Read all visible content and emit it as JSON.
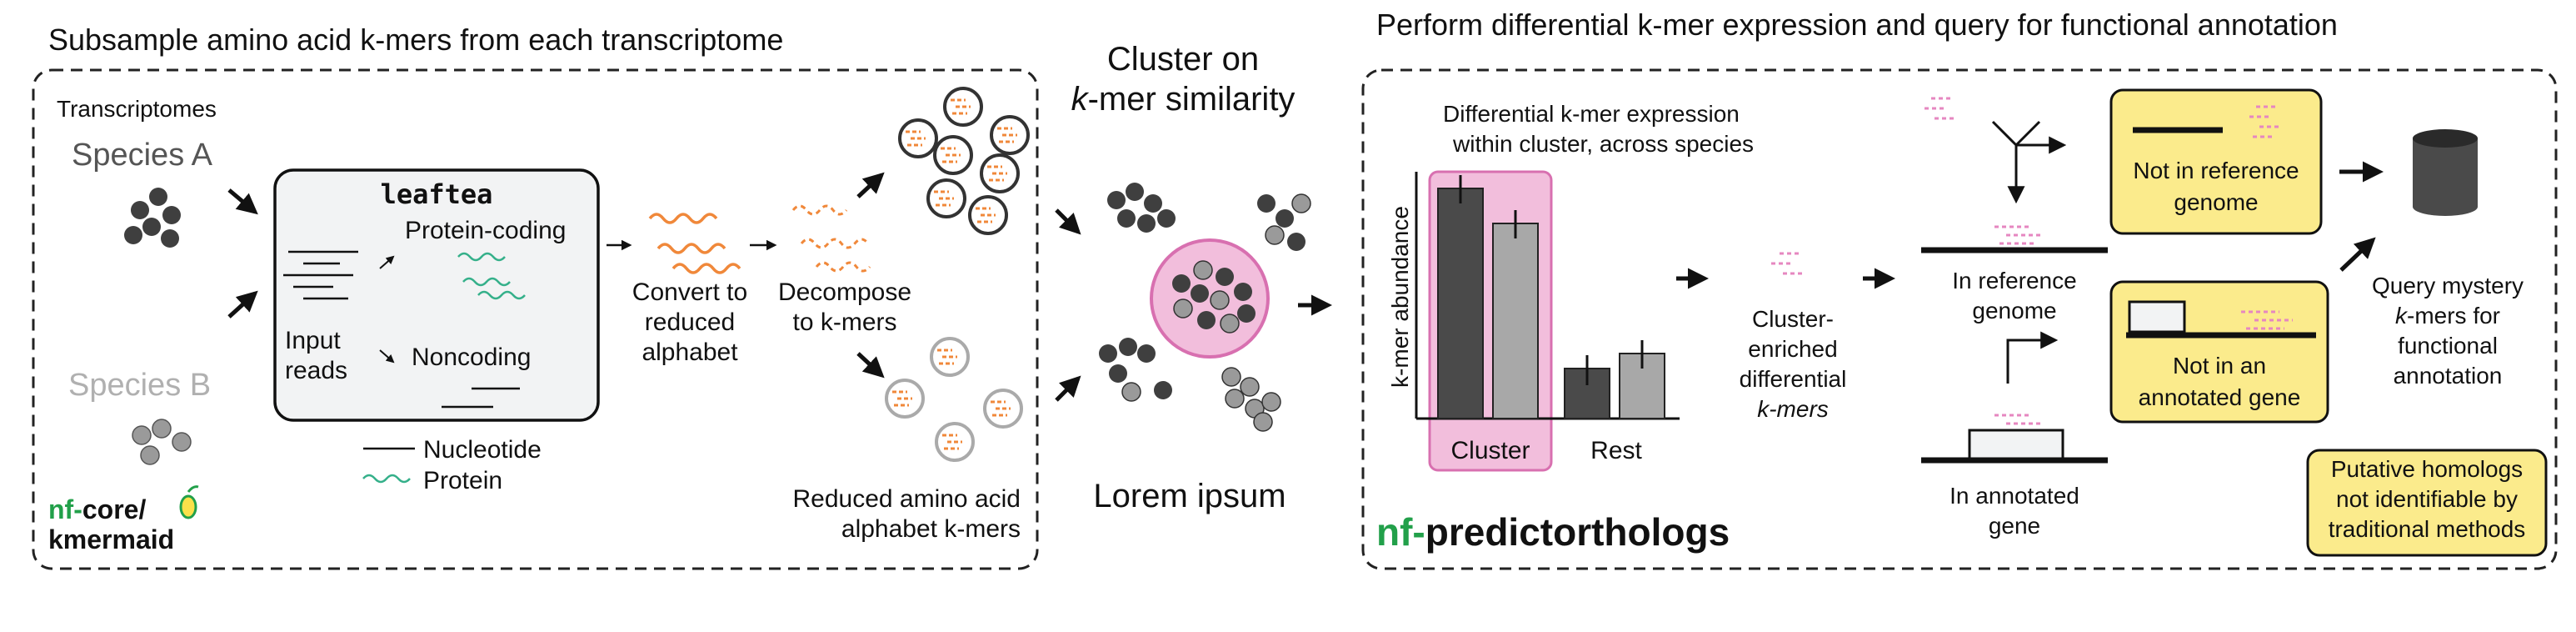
{
  "left_panel": {
    "title": "Subsample amino acid k-mers from each transcriptome",
    "transcriptomes_label": "Transcriptomes",
    "species_a": "Species A",
    "species_b": "Species B",
    "tool_name": "leaftea",
    "input_reads": [
      "Input",
      "reads"
    ],
    "protein_coding": "Protein-coding",
    "noncoding": "Noncoding",
    "legend_nucleotide": "Nucleotide",
    "legend_protein": "Protein",
    "convert_label": [
      "Convert to",
      "reduced",
      "alphabet"
    ],
    "decompose_label": [
      "Decompose",
      "to k-mers"
    ],
    "reduced_label": [
      "Reduced amino acid",
      "alphabet k-mers"
    ],
    "logo_nf": "nf-",
    "logo_core": "core/",
    "logo_name": "kmermaid"
  },
  "middle": {
    "title": [
      "Cluster on",
      "k-mer similarity"
    ],
    "placeholder": "Lorem ipsum"
  },
  "right_panel": {
    "title": "Perform differential k-mer expression and query for functional annotation",
    "chart_title": [
      "Differential k-mer expression",
      "within cluster, across species"
    ],
    "y_axis_label": "k-mer abundance",
    "cat_cluster": "Cluster",
    "cat_rest": "Rest",
    "enriched_label": [
      "Cluster-",
      "enriched",
      "differential",
      "k-mers"
    ],
    "in_reference": [
      "In reference",
      "genome"
    ],
    "in_annotated": [
      "In annotated",
      "gene"
    ],
    "not_in_reference": [
      "Not in reference",
      "genome"
    ],
    "not_in_annotated": [
      "Not in an",
      "annotated gene"
    ],
    "query_label": [
      "Query mystery",
      "k-mers  for",
      "functional",
      "annotation"
    ],
    "putative": [
      "Putative homologs",
      "not identifiable by",
      "traditional methods"
    ],
    "logo_nf": "nf-",
    "logo_name": "predictorthologs"
  },
  "colors": {
    "species_a": "#3f3f3f",
    "species_b": "#9a9a9a",
    "kmer_orange": "#f0883a",
    "protein_green": "#35b08a",
    "kmer_pink": "#e687c0",
    "cluster_highlight": "#f2bedc",
    "callout_yellow": "#fbeb8c",
    "nf_green": "#22a04a"
  }
}
